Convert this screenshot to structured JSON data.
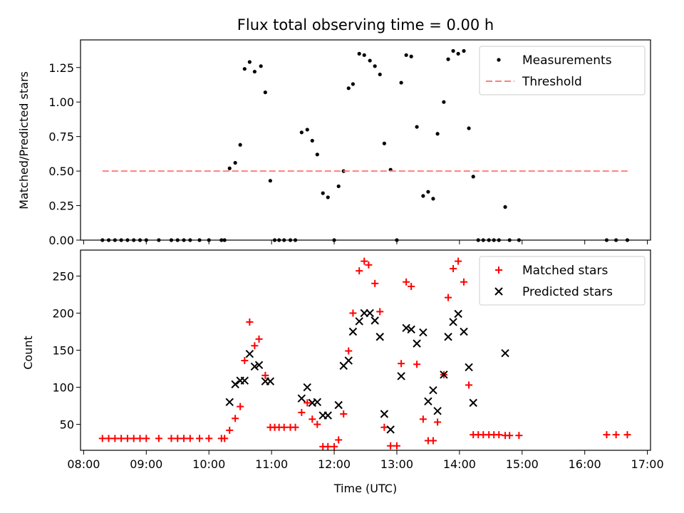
{
  "chart_data": [
    {
      "type": "scatter",
      "title": "Flux total observing time = 0.00 h",
      "xlabel": "",
      "ylabel": "Matched/Predicted stars",
      "xlim": [
        7.95,
        17.05
      ],
      "ylim": [
        0,
        1.45
      ],
      "yticks": [
        0,
        0.25,
        0.5,
        0.75,
        1.0,
        1.25
      ],
      "ytick_labels": [
        "0.00",
        "0.25",
        "0.50",
        "0.75",
        "1.00",
        "1.25"
      ],
      "legend_position": "top-right",
      "series": [
        {
          "name": "Measurements",
          "kind": "dots",
          "color": "#000000",
          "points": [
            [
              8.3,
              0
            ],
            [
              8.4,
              0
            ],
            [
              8.5,
              0
            ],
            [
              8.6,
              0
            ],
            [
              8.7,
              0
            ],
            [
              8.8,
              0
            ],
            [
              8.9,
              0
            ],
            [
              9.0,
              0
            ],
            [
              9.2,
              0
            ],
            [
              9.4,
              0
            ],
            [
              9.5,
              0
            ],
            [
              9.6,
              0
            ],
            [
              9.7,
              0
            ],
            [
              9.85,
              0
            ],
            [
              10.0,
              0
            ],
            [
              10.2,
              0
            ],
            [
              10.25,
              0
            ],
            [
              10.33,
              0.52
            ],
            [
              10.42,
              0.56
            ],
            [
              10.5,
              0.69
            ],
            [
              10.57,
              1.24
            ],
            [
              10.65,
              1.29
            ],
            [
              10.73,
              1.22
            ],
            [
              10.83,
              1.26
            ],
            [
              10.9,
              1.07
            ],
            [
              10.98,
              0.43
            ],
            [
              11.05,
              0
            ],
            [
              11.12,
              0
            ],
            [
              11.2,
              0
            ],
            [
              11.3,
              0
            ],
            [
              11.38,
              0
            ],
            [
              11.48,
              0.78
            ],
            [
              11.57,
              0.8
            ],
            [
              11.65,
              0.72
            ],
            [
              11.73,
              0.62
            ],
            [
              11.82,
              0.34
            ],
            [
              11.9,
              0.31
            ],
            [
              12.0,
              0
            ],
            [
              12.07,
              0.39
            ],
            [
              12.15,
              0.5
            ],
            [
              12.23,
              1.1
            ],
            [
              12.3,
              1.13
            ],
            [
              12.4,
              1.35
            ],
            [
              12.48,
              1.34
            ],
            [
              12.57,
              1.3
            ],
            [
              12.65,
              1.26
            ],
            [
              12.73,
              1.2
            ],
            [
              12.8,
              0.7
            ],
            [
              12.9,
              0.51
            ],
            [
              13.0,
              0
            ],
            [
              13.07,
              1.14
            ],
            [
              13.15,
              1.34
            ],
            [
              13.23,
              1.33
            ],
            [
              13.32,
              0.82
            ],
            [
              13.42,
              0.32
            ],
            [
              13.5,
              0.35
            ],
            [
              13.58,
              0.3
            ],
            [
              13.65,
              0.77
            ],
            [
              13.75,
              1.0
            ],
            [
              13.82,
              1.31
            ],
            [
              13.9,
              1.37
            ],
            [
              13.98,
              1.35
            ],
            [
              14.07,
              1.37
            ],
            [
              14.15,
              0.81
            ],
            [
              14.22,
              0.46
            ],
            [
              14.3,
              0
            ],
            [
              14.38,
              0
            ],
            [
              14.47,
              0
            ],
            [
              14.55,
              0
            ],
            [
              14.63,
              0
            ],
            [
              14.73,
              0.24
            ],
            [
              14.8,
              0
            ],
            [
              14.95,
              0
            ],
            [
              16.35,
              0
            ],
            [
              16.5,
              0
            ],
            [
              16.68,
              0
            ]
          ]
        },
        {
          "name": "Threshold",
          "kind": "dashed-line",
          "color": "#ff7f7f",
          "points": [
            [
              8.3,
              0.5
            ],
            [
              16.7,
              0.5
            ]
          ]
        }
      ]
    },
    {
      "type": "scatter",
      "title": "",
      "xlabel": "Time (UTC)",
      "ylabel": "Count",
      "xlim": [
        7.95,
        17.05
      ],
      "ylim": [
        15,
        285
      ],
      "yticks": [
        50,
        100,
        150,
        200,
        250
      ],
      "ytick_labels": [
        "50",
        "100",
        "150",
        "200",
        "250"
      ],
      "xticks": [
        8,
        9,
        10,
        11,
        12,
        13,
        14,
        15,
        16,
        17
      ],
      "xtick_labels": [
        "08:00",
        "09:00",
        "10:00",
        "11:00",
        "12:00",
        "13:00",
        "14:00",
        "15:00",
        "16:00",
        "17:00"
      ],
      "legend_position": "top-right",
      "series": [
        {
          "name": "Matched stars",
          "kind": "plus",
          "color": "#ff0000",
          "points": [
            [
              8.3,
              31
            ],
            [
              8.4,
              31
            ],
            [
              8.5,
              31
            ],
            [
              8.6,
              31
            ],
            [
              8.7,
              31
            ],
            [
              8.8,
              31
            ],
            [
              8.9,
              31
            ],
            [
              9.0,
              31
            ],
            [
              9.2,
              31
            ],
            [
              9.4,
              31
            ],
            [
              9.5,
              31
            ],
            [
              9.6,
              31
            ],
            [
              9.7,
              31
            ],
            [
              9.85,
              31
            ],
            [
              10.0,
              31
            ],
            [
              10.2,
              31
            ],
            [
              10.25,
              31
            ],
            [
              10.33,
              42
            ],
            [
              10.42,
              58
            ],
            [
              10.5,
              74
            ],
            [
              10.57,
              136
            ],
            [
              10.65,
              188
            ],
            [
              10.73,
              156
            ],
            [
              10.8,
              165
            ],
            [
              10.9,
              116
            ],
            [
              10.98,
              46
            ],
            [
              11.05,
              46
            ],
            [
              11.12,
              46
            ],
            [
              11.2,
              46
            ],
            [
              11.3,
              46
            ],
            [
              11.38,
              46
            ],
            [
              11.48,
              66
            ],
            [
              11.57,
              79
            ],
            [
              11.65,
              57
            ],
            [
              11.73,
              50
            ],
            [
              11.82,
              20
            ],
            [
              11.9,
              20
            ],
            [
              12.0,
              20
            ],
            [
              12.07,
              29
            ],
            [
              12.15,
              64
            ],
            [
              12.23,
              149
            ],
            [
              12.3,
              200
            ],
            [
              12.4,
              257
            ],
            [
              12.48,
              270
            ],
            [
              12.55,
              265
            ],
            [
              12.65,
              240
            ],
            [
              12.73,
              202
            ],
            [
              12.8,
              46
            ],
            [
              12.9,
              21
            ],
            [
              13.0,
              21
            ],
            [
              13.07,
              132
            ],
            [
              13.15,
              242
            ],
            [
              13.23,
              236
            ],
            [
              13.32,
              131
            ],
            [
              13.42,
              57
            ],
            [
              13.5,
              28
            ],
            [
              13.58,
              28
            ],
            [
              13.65,
              53
            ],
            [
              13.75,
              117
            ],
            [
              13.82,
              221
            ],
            [
              13.9,
              260
            ],
            [
              13.98,
              270
            ],
            [
              14.07,
              242
            ],
            [
              14.15,
              103
            ],
            [
              14.22,
              36
            ],
            [
              14.3,
              36
            ],
            [
              14.38,
              36
            ],
            [
              14.47,
              36
            ],
            [
              14.55,
              36
            ],
            [
              14.63,
              36
            ],
            [
              14.73,
              35
            ],
            [
              14.8,
              35
            ],
            [
              14.95,
              35
            ],
            [
              16.35,
              36
            ],
            [
              16.5,
              36
            ],
            [
              16.68,
              36
            ]
          ]
        },
        {
          "name": "Predicted stars",
          "kind": "x",
          "color": "#000000",
          "points": [
            [
              10.33,
              80
            ],
            [
              10.42,
              104
            ],
            [
              10.5,
              109
            ],
            [
              10.57,
              109
            ],
            [
              10.65,
              145
            ],
            [
              10.73,
              128
            ],
            [
              10.8,
              130
            ],
            [
              10.9,
              108
            ],
            [
              10.98,
              108
            ],
            [
              11.48,
              85
            ],
            [
              11.57,
              100
            ],
            [
              11.65,
              79
            ],
            [
              11.73,
              80
            ],
            [
              11.82,
              62
            ],
            [
              11.9,
              62
            ],
            [
              12.07,
              76
            ],
            [
              12.15,
              129
            ],
            [
              12.23,
              136
            ],
            [
              12.3,
              175
            ],
            [
              12.4,
              189
            ],
            [
              12.48,
              200
            ],
            [
              12.57,
              200
            ],
            [
              12.65,
              190
            ],
            [
              12.73,
              168
            ],
            [
              12.8,
              64
            ],
            [
              12.9,
              43
            ],
            [
              13.07,
              115
            ],
            [
              13.15,
              180
            ],
            [
              13.23,
              178
            ],
            [
              13.32,
              159
            ],
            [
              13.42,
              174
            ],
            [
              13.5,
              81
            ],
            [
              13.58,
              96
            ],
            [
              13.65,
              68
            ],
            [
              13.75,
              117
            ],
            [
              13.82,
              168
            ],
            [
              13.9,
              188
            ],
            [
              13.98,
              199
            ],
            [
              14.07,
              175
            ],
            [
              14.15,
              127
            ],
            [
              14.22,
              79
            ],
            [
              14.73,
              146
            ]
          ]
        }
      ]
    }
  ]
}
